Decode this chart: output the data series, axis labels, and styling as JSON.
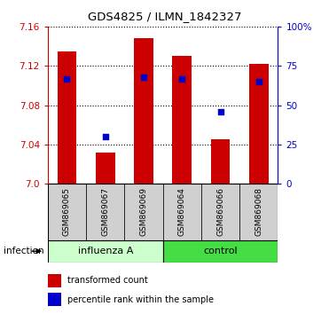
{
  "title": "GDS4825 / ILMN_1842327",
  "samples": [
    "GSM869065",
    "GSM869067",
    "GSM869069",
    "GSM869064",
    "GSM869066",
    "GSM869068"
  ],
  "group_labels": [
    "influenza A",
    "control"
  ],
  "bar_color": "#cc0000",
  "blue_color": "#0000cc",
  "bar_values": [
    7.135,
    7.032,
    7.148,
    7.13,
    7.045,
    7.122
  ],
  "blue_values_pct": [
    67,
    30,
    68,
    67,
    46,
    65
  ],
  "ymin": 7.0,
  "ymax": 7.16,
  "yticks": [
    7.0,
    7.04,
    7.08,
    7.12,
    7.16
  ],
  "right_yticks": [
    0,
    25,
    50,
    75,
    100
  ],
  "right_ytick_labels": [
    "0",
    "25",
    "50",
    "75",
    "100%"
  ],
  "left_axis_color": "#cc0000",
  "right_axis_color": "#0000cc",
  "bg_label": "#d0d0d0",
  "bg_group_light": "#ccffcc",
  "bg_group_dark": "#44dd44",
  "infection_label": "infection",
  "legend_bar_label": "transformed count",
  "legend_blue_label": "percentile rank within the sample"
}
